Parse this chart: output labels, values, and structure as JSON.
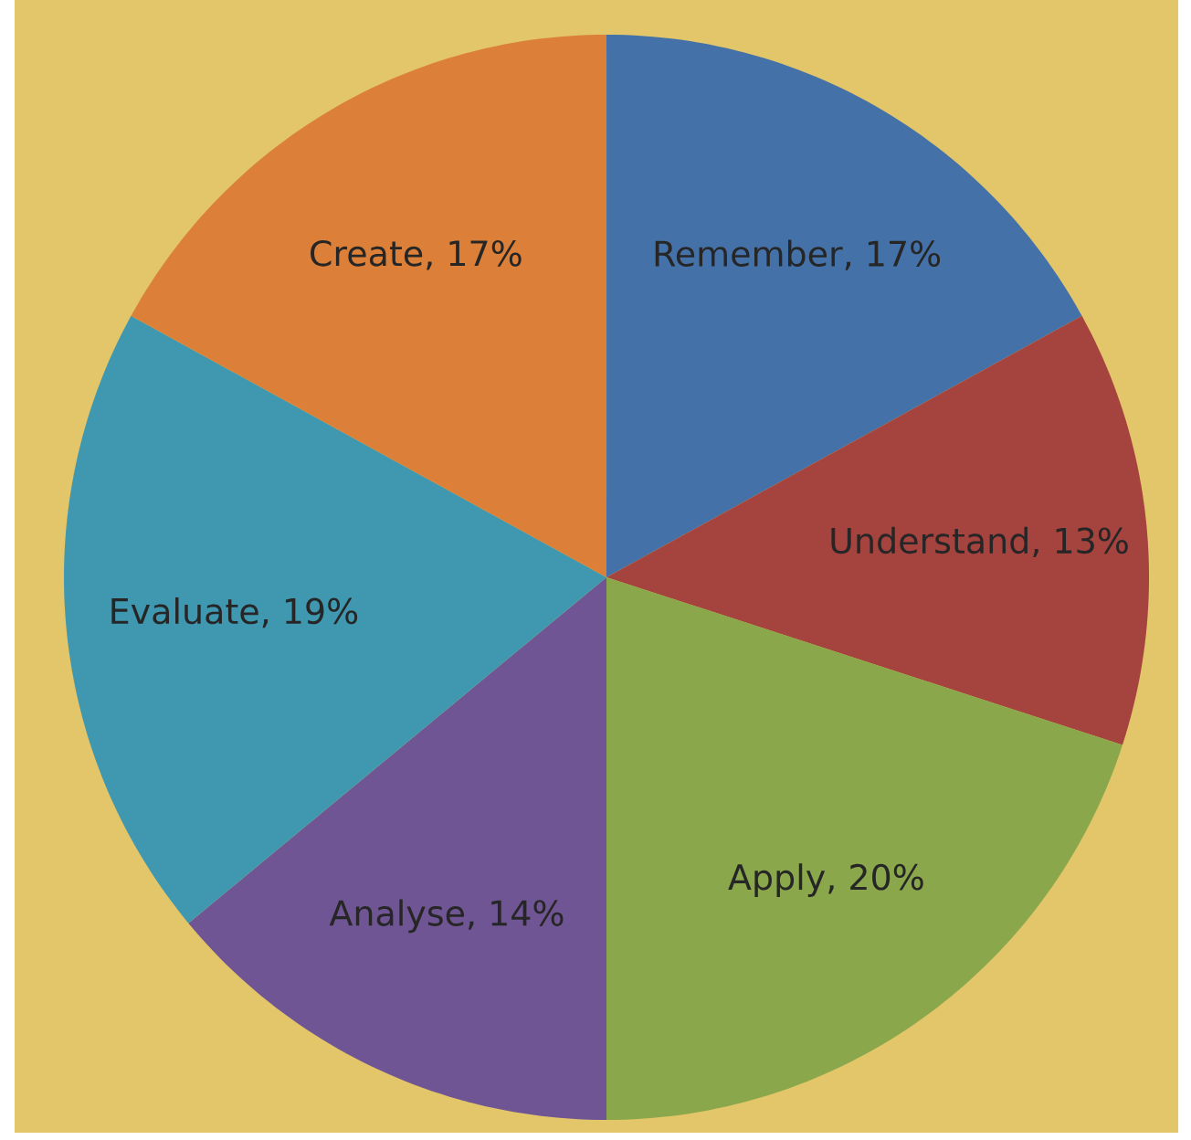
{
  "chart_data": {
    "type": "pie",
    "categories": [
      "Remember",
      "Understand",
      "Apply",
      "Analyse",
      "Evaluate",
      "Create"
    ],
    "values": [
      17,
      13,
      20,
      14,
      19,
      17
    ],
    "value_labels": [
      ", 17%",
      ", 13%",
      ", 20%",
      ", 14%",
      ", 19%",
      ", 17%"
    ],
    "colors": [
      "#4472a8",
      "#a5433f",
      "#8aa74b",
      "#6f5593",
      "#3f98b0",
      "#dc8039"
    ]
  }
}
